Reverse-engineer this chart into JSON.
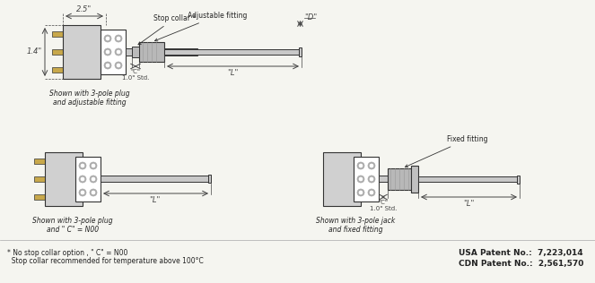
{
  "bg_color": "#f5f5f0",
  "line_color": "#333333",
  "body_color": "#e8e8e8",
  "plug_color": "#d0d0d0",
  "probe_color": "#c8c8c8",
  "fitting_color": "#b8b8b8",
  "gold_color": "#c8a84b",
  "text_color": "#222222",
  "dim_color": "#444444",
  "footnote1": "* No stop collar option , \" C\" = N00",
  "footnote2": "  Stop collar recommended for temperature above 100°C",
  "patent1": "USA Patent No.:  7,223,014",
  "patent2": "CDN Patent No.:  2,561,570",
  "label_top_plug": "Shown with 3-pole plug\nand adjustable fitting",
  "label_bot_plug": "Shown with 3-pole plug\nand \" C\" = N00",
  "label_bot_jack": "Shown with 3-pole jack\nand fixed fitting",
  "dim_25": "2.5\"",
  "dim_14": "1.4\"",
  "dim_L": "\"L\"",
  "dim_C": "\"C\"\n1.0\" Std.",
  "dim_D": "\"D\"",
  "label_stop": "Stop collar *",
  "label_adj": "Adjustable fitting",
  "label_fixed": "Fixed fitting"
}
